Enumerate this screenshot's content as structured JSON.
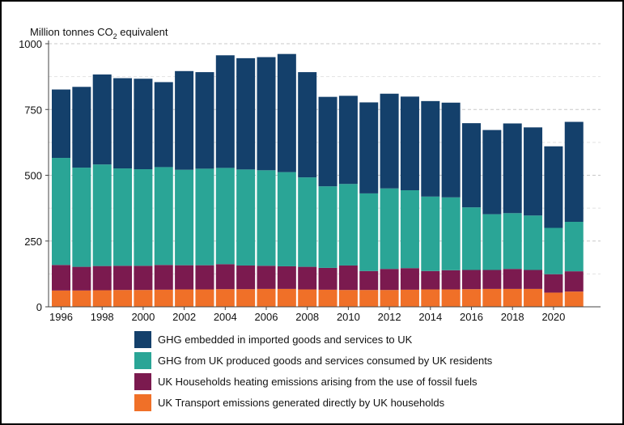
{
  "chart_data": {
    "type": "bar",
    "stacked": true,
    "ylabel_main": "Million tonnes CO",
    "ylabel_sub": "2",
    "ylabel_tail": " equivalent",
    "ylim": [
      0,
      1000
    ],
    "yticks": [
      0,
      250,
      500,
      750,
      1000
    ],
    "xtick_labels": [
      "1996",
      "1998",
      "2000",
      "2002",
      "2004",
      "2006",
      "2008",
      "2010",
      "2012",
      "2014",
      "2016",
      "2018",
      "2020"
    ],
    "categories": [
      "1996",
      "1997",
      "1998",
      "1999",
      "2000",
      "2001",
      "2002",
      "2003",
      "2004",
      "2005",
      "2006",
      "2007",
      "2008",
      "2009",
      "2010",
      "2011",
      "2012",
      "2013",
      "2014",
      "2015",
      "2016",
      "2017",
      "2018",
      "2019",
      "2020",
      "2021"
    ],
    "series": [
      {
        "name": "UK Transport emissions generated directly by UK households",
        "color": "#f07028",
        "values": [
          62,
          62,
          63,
          64,
          64,
          65,
          66,
          66,
          67,
          67,
          68,
          68,
          66,
          65,
          64,
          64,
          64,
          65,
          66,
          66,
          67,
          68,
          68,
          68,
          54,
          58
        ]
      },
      {
        "name": "UK Households heating emissions arising from the use of fossil fuels",
        "color": "#7b1a4f",
        "values": [
          97,
          90,
          92,
          92,
          92,
          94,
          92,
          92,
          95,
          90,
          88,
          86,
          86,
          83,
          93,
          72,
          80,
          82,
          70,
          73,
          73,
          72,
          76,
          72,
          70,
          77
        ]
      },
      {
        "name": "GHG from UK produced goods and services consumed by UK residents",
        "color": "#2aa596",
        "values": [
          407,
          377,
          386,
          370,
          367,
          372,
          363,
          367,
          366,
          365,
          363,
          358,
          340,
          310,
          310,
          295,
          306,
          296,
          283,
          277,
          238,
          212,
          212,
          207,
          176,
          188
        ]
      },
      {
        "name": "GHG embedded in imported goods and services to UK",
        "color": "#14406b",
        "values": [
          260,
          307,
          342,
          343,
          344,
          323,
          375,
          367,
          428,
          423,
          430,
          449,
          400,
          340,
          335,
          346,
          360,
          356,
          363,
          360,
          320,
          320,
          341,
          335,
          310,
          380
        ]
      }
    ],
    "legend_order": [
      "GHG embedded in imported goods and services to UK",
      "GHG from UK produced goods and services consumed by UK residents",
      "UK Households heating emissions arising from the use of fossil fuels",
      "UK Transport emissions generated directly by UK households"
    ],
    "legend_colors": [
      "#14406b",
      "#2aa596",
      "#7b1a4f",
      "#f07028"
    ],
    "grid": true,
    "legend_position": "bottom"
  }
}
